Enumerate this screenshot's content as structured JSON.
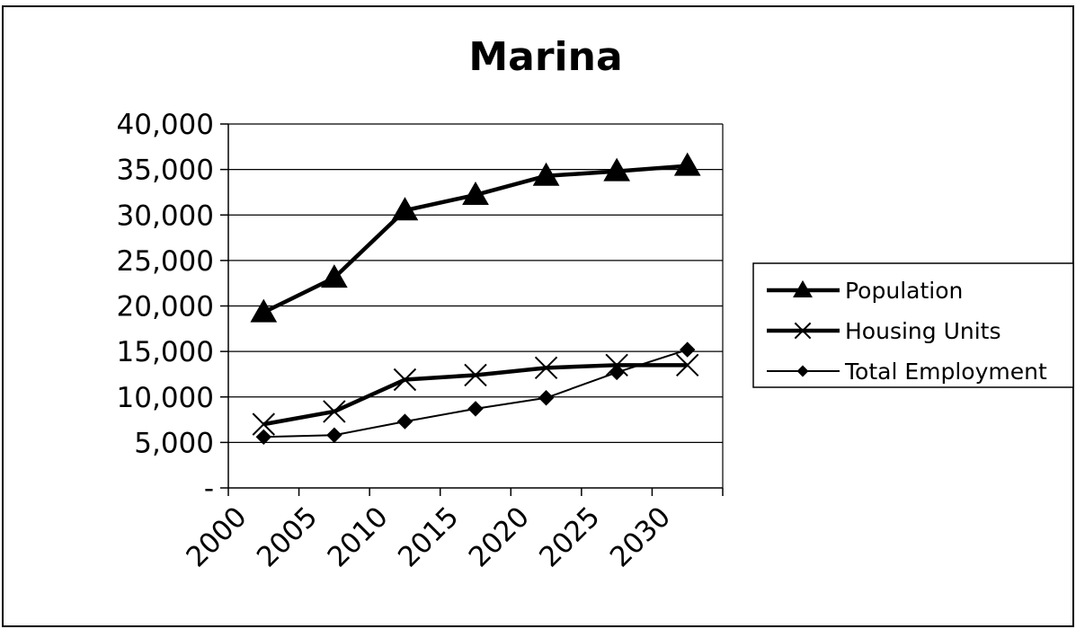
{
  "chart_data": {
    "type": "line",
    "title": "Marina",
    "xlabel": "",
    "ylabel": "",
    "categories": [
      "2000",
      "2005",
      "2010",
      "2015",
      "2020",
      "2025",
      "2030"
    ],
    "y_tick_labels": [
      "-",
      "5,000",
      "10,000",
      "15,000",
      "20,000",
      "25,000",
      "30,000",
      "35,000",
      "40,000"
    ],
    "ylim": [
      0,
      40000
    ],
    "grid": true,
    "legend_position": "right",
    "series": [
      {
        "name": "Population",
        "marker": "triangle",
        "line_width": "thick",
        "values": [
          19300,
          23100,
          30500,
          32200,
          34300,
          34800,
          35400
        ]
      },
      {
        "name": "Housing Units",
        "marker": "x",
        "line_width": "thick",
        "values": [
          7000,
          8400,
          11900,
          12400,
          13200,
          13500,
          13500
        ]
      },
      {
        "name": "Total Employment",
        "marker": "diamond",
        "line_width": "thin",
        "values": [
          5600,
          5800,
          7300,
          8700,
          9900,
          12700,
          15200
        ]
      }
    ],
    "colors": {
      "line": "#000000",
      "grid": "#000000",
      "background": "#ffffff"
    }
  }
}
